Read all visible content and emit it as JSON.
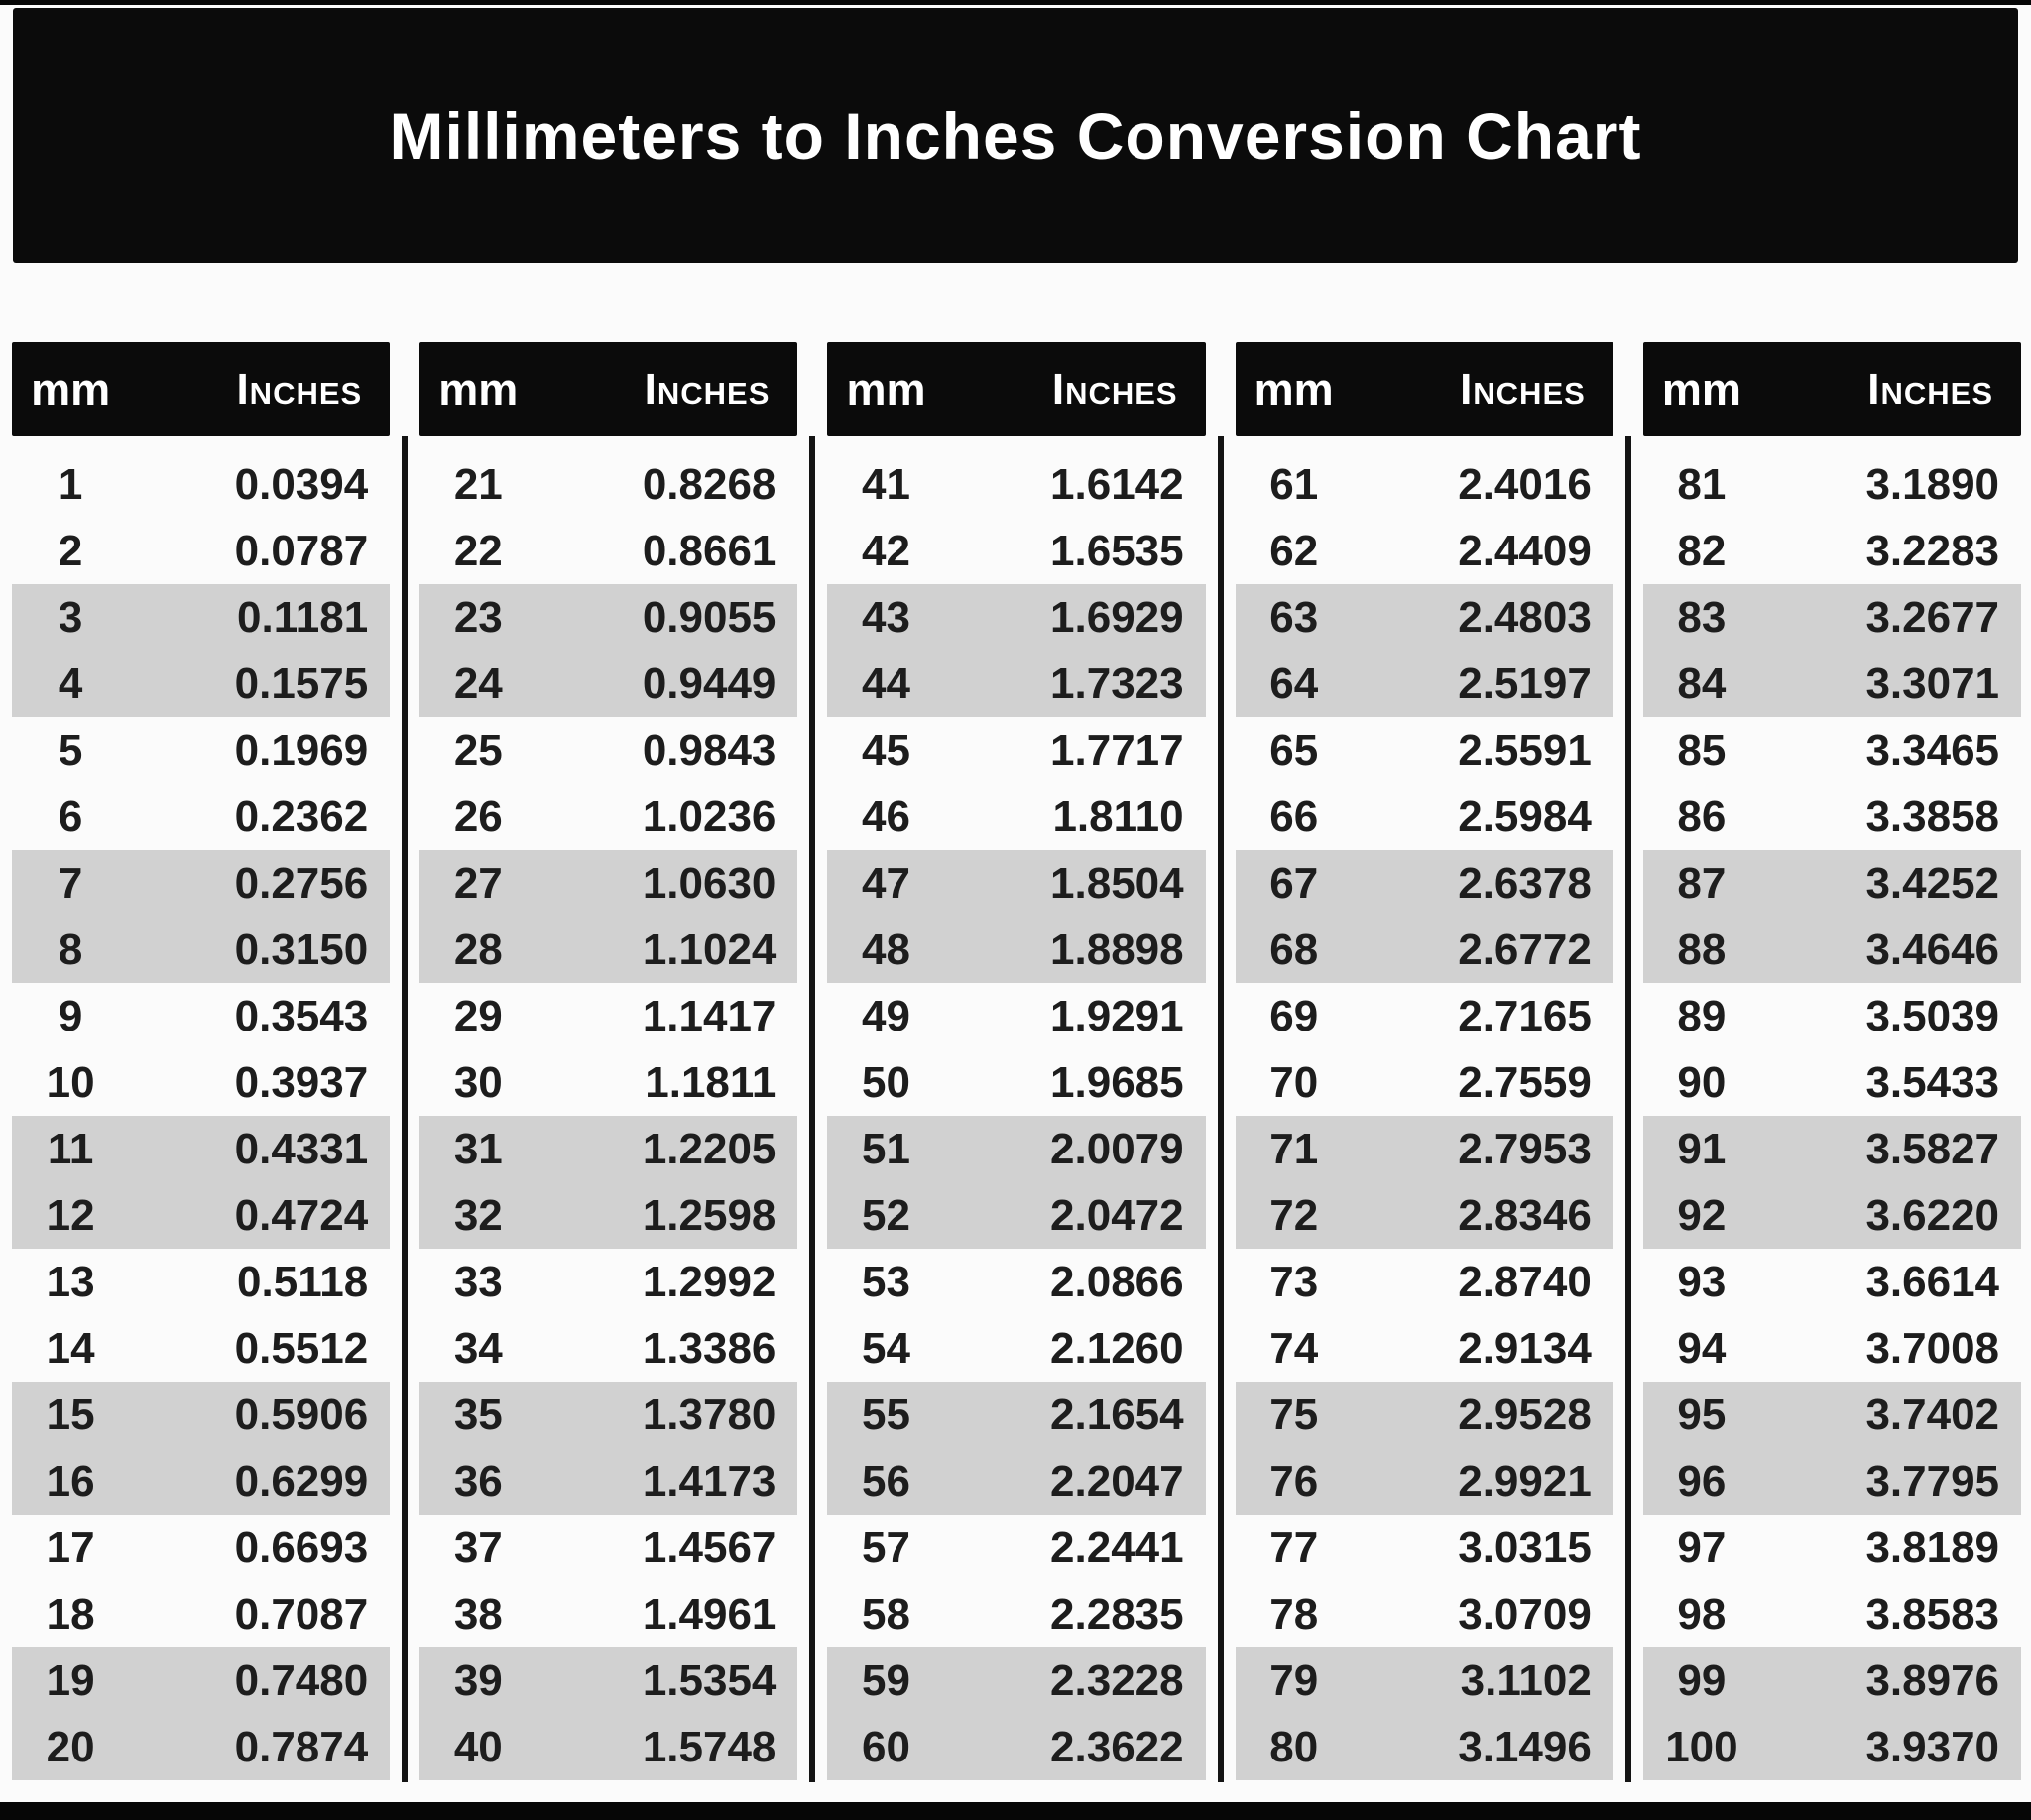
{
  "title": "Millimeters to Inches Conversion Chart",
  "column_header": {
    "mm_label": "mm",
    "inches_label": "Inches"
  },
  "colors": {
    "bar_black": "#0b0b0b",
    "row_gray": "#d1d1d1",
    "page_white": "#fbfbfb",
    "header_text": "#ffffff",
    "data_text": "#1d1d1d"
  },
  "tables": [
    {
      "rows": [
        [
          1,
          "0.0394"
        ],
        [
          2,
          "0.0787"
        ],
        [
          3,
          "0.1181"
        ],
        [
          4,
          "0.1575"
        ],
        [
          5,
          "0.1969"
        ],
        [
          6,
          "0.2362"
        ],
        [
          7,
          "0.2756"
        ],
        [
          8,
          "0.3150"
        ],
        [
          9,
          "0.3543"
        ],
        [
          10,
          "0.3937"
        ],
        [
          11,
          "0.4331"
        ],
        [
          12,
          "0.4724"
        ],
        [
          13,
          "0.5118"
        ],
        [
          14,
          "0.5512"
        ],
        [
          15,
          "0.5906"
        ],
        [
          16,
          "0.6299"
        ],
        [
          17,
          "0.6693"
        ],
        [
          18,
          "0.7087"
        ],
        [
          19,
          "0.7480"
        ],
        [
          20,
          "0.7874"
        ]
      ]
    },
    {
      "rows": [
        [
          21,
          "0.8268"
        ],
        [
          22,
          "0.8661"
        ],
        [
          23,
          "0.9055"
        ],
        [
          24,
          "0.9449"
        ],
        [
          25,
          "0.9843"
        ],
        [
          26,
          "1.0236"
        ],
        [
          27,
          "1.0630"
        ],
        [
          28,
          "1.1024"
        ],
        [
          29,
          "1.1417"
        ],
        [
          30,
          "1.1811"
        ],
        [
          31,
          "1.2205"
        ],
        [
          32,
          "1.2598"
        ],
        [
          33,
          "1.2992"
        ],
        [
          34,
          "1.3386"
        ],
        [
          35,
          "1.3780"
        ],
        [
          36,
          "1.4173"
        ],
        [
          37,
          "1.4567"
        ],
        [
          38,
          "1.4961"
        ],
        [
          39,
          "1.5354"
        ],
        [
          40,
          "1.5748"
        ]
      ]
    },
    {
      "rows": [
        [
          41,
          "1.6142"
        ],
        [
          42,
          "1.6535"
        ],
        [
          43,
          "1.6929"
        ],
        [
          44,
          "1.7323"
        ],
        [
          45,
          "1.7717"
        ],
        [
          46,
          "1.8110"
        ],
        [
          47,
          "1.8504"
        ],
        [
          48,
          "1.8898"
        ],
        [
          49,
          "1.9291"
        ],
        [
          50,
          "1.9685"
        ],
        [
          51,
          "2.0079"
        ],
        [
          52,
          "2.0472"
        ],
        [
          53,
          "2.0866"
        ],
        [
          54,
          "2.1260"
        ],
        [
          55,
          "2.1654"
        ],
        [
          56,
          "2.2047"
        ],
        [
          57,
          "2.2441"
        ],
        [
          58,
          "2.2835"
        ],
        [
          59,
          "2.3228"
        ],
        [
          60,
          "2.3622"
        ]
      ]
    },
    {
      "rows": [
        [
          61,
          "2.4016"
        ],
        [
          62,
          "2.4409"
        ],
        [
          63,
          "2.4803"
        ],
        [
          64,
          "2.5197"
        ],
        [
          65,
          "2.5591"
        ],
        [
          66,
          "2.5984"
        ],
        [
          67,
          "2.6378"
        ],
        [
          68,
          "2.6772"
        ],
        [
          69,
          "2.7165"
        ],
        [
          70,
          "2.7559"
        ],
        [
          71,
          "2.7953"
        ],
        [
          72,
          "2.8346"
        ],
        [
          73,
          "2.8740"
        ],
        [
          74,
          "2.9134"
        ],
        [
          75,
          "2.9528"
        ],
        [
          76,
          "2.9921"
        ],
        [
          77,
          "3.0315"
        ],
        [
          78,
          "3.0709"
        ],
        [
          79,
          "3.1102"
        ],
        [
          80,
          "3.1496"
        ]
      ]
    },
    {
      "rows": [
        [
          81,
          "3.1890"
        ],
        [
          82,
          "3.2283"
        ],
        [
          83,
          "3.2677"
        ],
        [
          84,
          "3.3071"
        ],
        [
          85,
          "3.3465"
        ],
        [
          86,
          "3.3858"
        ],
        [
          87,
          "3.4252"
        ],
        [
          88,
          "3.4646"
        ],
        [
          89,
          "3.5039"
        ],
        [
          90,
          "3.5433"
        ],
        [
          91,
          "3.5827"
        ],
        [
          92,
          "3.6220"
        ],
        [
          93,
          "3.6614"
        ],
        [
          94,
          "3.7008"
        ],
        [
          95,
          "3.7402"
        ],
        [
          96,
          "3.7795"
        ],
        [
          97,
          "3.8189"
        ],
        [
          98,
          "3.8583"
        ],
        [
          99,
          "3.8976"
        ],
        [
          100,
          "3.9370"
        ]
      ]
    }
  ]
}
